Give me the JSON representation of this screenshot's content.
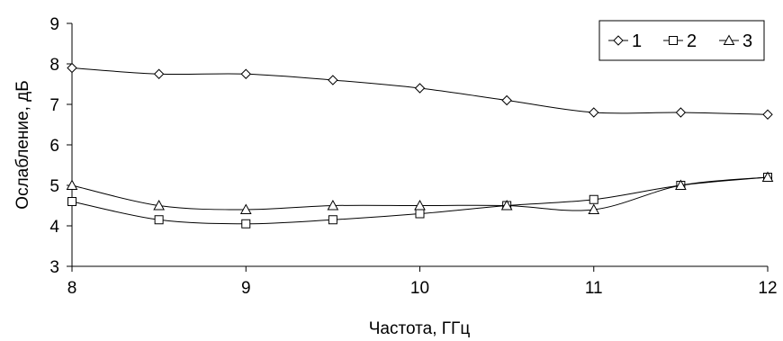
{
  "chart_data": {
    "type": "line",
    "title": "",
    "xlabel": "Частота, ГГц",
    "ylabel": "Ослабление, дБ",
    "xlim": [
      8,
      12
    ],
    "ylim": [
      3,
      9
    ],
    "x_ticks": [
      "8",
      "9",
      "10",
      "11",
      "12"
    ],
    "y_ticks": [
      "3",
      "4",
      "5",
      "6",
      "7",
      "8",
      "9"
    ],
    "grid": false,
    "legend_position": "top-right",
    "smooth": true,
    "series": [
      {
        "name": "1",
        "marker": "diamond",
        "x": [
          8,
          8.5,
          9,
          9.5,
          10,
          10.5,
          11,
          11.5,
          12
        ],
        "values": [
          7.9,
          7.75,
          7.75,
          7.6,
          7.4,
          7.1,
          6.8,
          6.8,
          6.75
        ]
      },
      {
        "name": "2",
        "marker": "square",
        "x": [
          8,
          8.5,
          9,
          9.5,
          10,
          10.5,
          11,
          11.5,
          12
        ],
        "values": [
          4.6,
          4.15,
          4.05,
          4.15,
          4.3,
          4.5,
          4.65,
          5.0,
          5.2
        ]
      },
      {
        "name": "3",
        "marker": "triangle",
        "x": [
          8,
          8.5,
          9,
          9.5,
          10,
          10.5,
          11,
          11.5,
          12
        ],
        "values": [
          5.0,
          4.5,
          4.4,
          4.5,
          4.5,
          4.5,
          4.4,
          5.0,
          5.2
        ]
      }
    ]
  }
}
